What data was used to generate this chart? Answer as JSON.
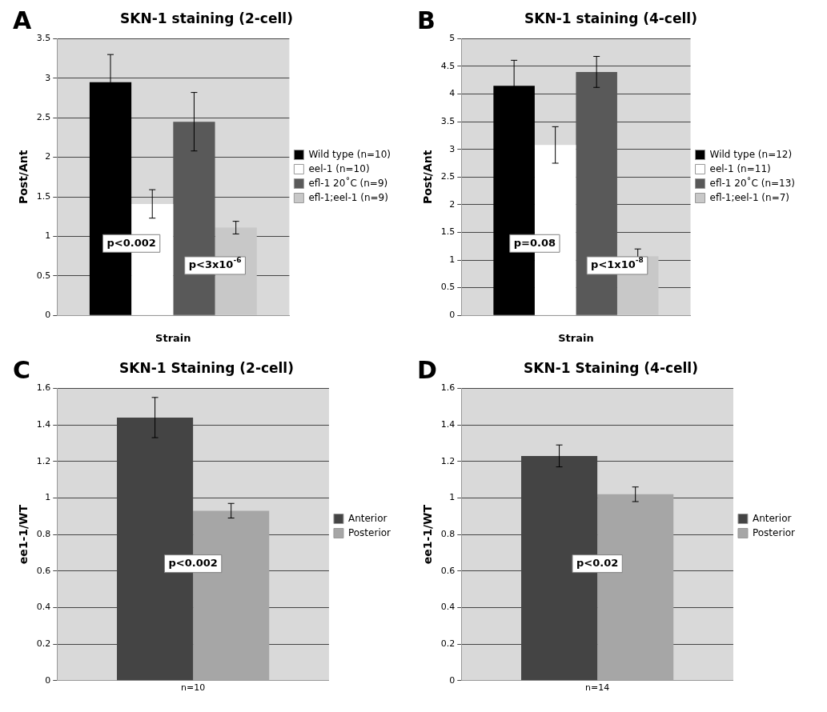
{
  "chart_data": [
    {
      "type": "bar",
      "title": "SKN-1 staining (2-cell)",
      "ylabel": "Post/Ant",
      "xlabel": "Strain",
      "categories": [
        null
      ],
      "ylim": [
        0,
        3.5
      ],
      "yticks": [
        0,
        0.5,
        1,
        1.5,
        2,
        2.5,
        3,
        3.5
      ],
      "grid": "y",
      "legend": "right",
      "annotations": [
        "A",
        "p<0.002",
        "p<3x10$^{-6}$"
      ],
      "series": [
        {
          "name": "Wild type (n=10)",
          "color": "#000000",
          "values": [
            2.95
          ],
          "errors": [
            0.35
          ]
        },
        {
          "name": "eel-1 (n=10)",
          "color": "#ffffff",
          "values": [
            1.41
          ],
          "errors": [
            0.18
          ]
        },
        {
          "name": "efl-1 20˚C (n=9)",
          "color": "#595959",
          "values": [
            2.45
          ],
          "errors": [
            0.37
          ]
        },
        {
          "name": "efl-1;eel-1 (n=9)",
          "color": "#c8c8c8",
          "values": [
            1.11
          ],
          "errors": [
            0.08
          ]
        }
      ]
    },
    {
      "type": "bar",
      "title": "SKN-1 staining (4-cell)",
      "ylabel": "Post/Ant",
      "xlabel": "Strain",
      "categories": [
        null
      ],
      "ylim": [
        0,
        5
      ],
      "yticks": [
        0,
        0.5,
        1,
        1.5,
        2,
        2.5,
        3,
        3.5,
        4,
        4.5,
        5
      ],
      "grid": "y",
      "legend": "right",
      "annotations": [
        "B",
        "p=0.08",
        "p<1x10$^{-8}$"
      ],
      "series": [
        {
          "name": "Wild type (n=12)",
          "color": "#000000",
          "values": [
            4.15
          ],
          "errors": [
            0.46
          ]
        },
        {
          "name": "eel-1 (n=11)",
          "color": "#ffffff",
          "values": [
            3.08
          ],
          "errors": [
            0.33
          ]
        },
        {
          "name": "efl-1 20˚C (n=13)",
          "color": "#595959",
          "values": [
            4.4
          ],
          "errors": [
            0.28
          ]
        },
        {
          "name": "efl-1;eel-1 (n=7)",
          "color": "#c8c8c8",
          "values": [
            1.07
          ],
          "errors": [
            0.13
          ]
        }
      ]
    },
    {
      "type": "bar",
      "title": "SKN-1 Staining (2-cell)",
      "ylabel": "ee1-1/WT",
      "categories": [
        "n=10"
      ],
      "ylim": [
        0,
        1.6
      ],
      "yticks": [
        0,
        0.2,
        0.4,
        0.6,
        0.8,
        1,
        1.2,
        1.4,
        1.6
      ],
      "grid": "y",
      "legend": "right",
      "annotations": [
        "C",
        "p<0.002"
      ],
      "series": [
        {
          "name": "Anterior",
          "color": "#444444",
          "values": [
            1.44
          ],
          "errors": [
            0.11
          ]
        },
        {
          "name": "Posterior",
          "color": "#a6a6a6",
          "values": [
            0.93
          ],
          "errors": [
            0.04
          ]
        }
      ]
    },
    {
      "type": "bar",
      "title": "SKN-1 Staining (4-cell)",
      "ylabel": "ee1-1/WT",
      "categories": [
        "n=14"
      ],
      "ylim": [
        0,
        1.6
      ],
      "yticks": [
        0,
        0.2,
        0.4,
        0.6,
        0.8,
        1,
        1.2,
        1.4,
        1.6
      ],
      "grid": "y",
      "legend": "right",
      "annotations": [
        "D",
        "p<0.02"
      ],
      "series": [
        {
          "name": "Anterior",
          "color": "#444444",
          "values": [
            1.23
          ],
          "errors": [
            0.06
          ]
        },
        {
          "name": "Posterior",
          "color": "#a6a6a6",
          "values": [
            1.02
          ],
          "errors": [
            0.04
          ]
        }
      ]
    }
  ]
}
